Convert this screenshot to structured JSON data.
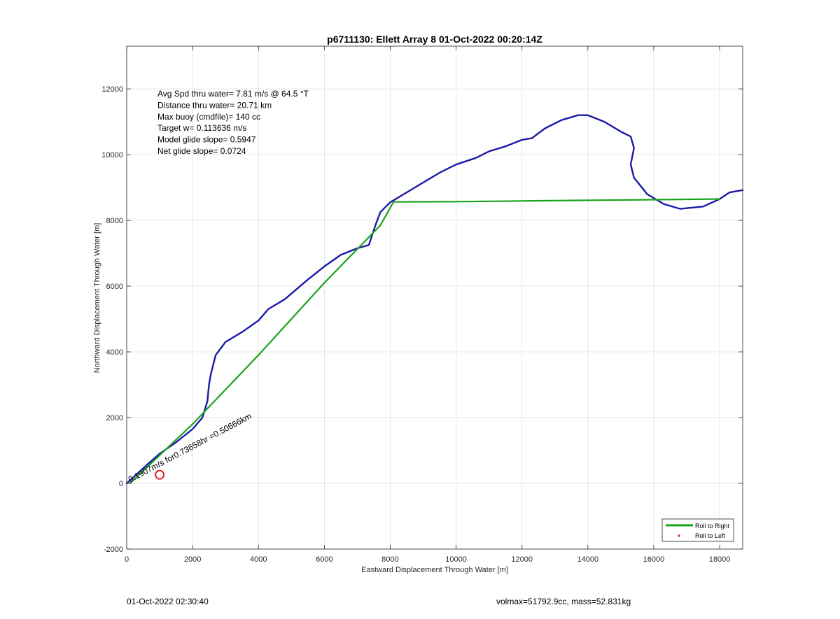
{
  "chart_data": {
    "type": "line",
    "title": "p6711130: Ellett Array 8 01-Oct-2022 00:20:14Z",
    "xlabel": "Eastward Displacement Through Water [m]",
    "ylabel": "Northward Displacement Through Water [m]",
    "xlim": [
      0,
      18700
    ],
    "ylim": [
      -2000,
      13300
    ],
    "grid": true,
    "x_ticks": [
      0,
      2000,
      4000,
      6000,
      8000,
      10000,
      12000,
      14000,
      16000,
      18000
    ],
    "y_ticks": [
      -2000,
      0,
      2000,
      4000,
      6000,
      8000,
      10000,
      12000
    ],
    "x_tick_labels": [
      "0",
      "2000",
      "4000",
      "6000",
      "8000",
      "10000",
      "12000",
      "14000",
      "16000",
      "18000"
    ],
    "y_tick_labels": [
      "-2000",
      "0",
      "2000",
      "4000",
      "6000",
      "8000",
      "10000",
      "12000"
    ],
    "legend": {
      "placement": "bottom-right",
      "entries": [
        {
          "label": "Roll to Right",
          "color": "#1aa31a",
          "marker": "line"
        },
        {
          "label": "Roll to Left",
          "color": "#e02020",
          "marker": "dot"
        }
      ]
    },
    "annotations": [
      "Avg Spd thru water=  7.81 m/s @  64.5 °T",
      "Distance thru water= 20.71 km",
      "Max buoy (cmdfile)= 140 cc",
      "Target w= 0.113636 m/s",
      "Model glide slope= 0.5947",
      "Net glide slope= 0.0724"
    ],
    "current_label": "0.1907m/s for0.73658hr =0.50666km",
    "series": [
      {
        "color": "#1a1aa8",
        "x": [
          0,
          200,
          600,
          1000,
          1500,
          2000,
          2300,
          2450,
          2500,
          2550,
          2700,
          3000,
          3500,
          4000,
          4300,
          4800,
          5500,
          6000,
          6500,
          7000,
          7350,
          7450,
          7550,
          7700,
          8000,
          8500,
          9000,
          9500,
          10000,
          10600,
          11000,
          11500,
          12000,
          12300,
          12700,
          13200,
          13700,
          14000,
          14500,
          15000,
          15300,
          15400,
          15300,
          15400,
          15800,
          16300,
          16800,
          17500,
          18000,
          18300,
          18700
        ],
        "y": [
          0,
          180,
          550,
          900,
          1250,
          1650,
          2000,
          2500,
          3000,
          3300,
          3900,
          4300,
          4600,
          4950,
          5300,
          5600,
          6200,
          6600,
          6950,
          7150,
          7250,
          7550,
          7850,
          8250,
          8550,
          8850,
          9150,
          9450,
          9700,
          9900,
          10100,
          10250,
          10450,
          10500,
          10800,
          11050,
          11200,
          11200,
          11000,
          10700,
          10550,
          10200,
          9700,
          9300,
          8800,
          8500,
          8350,
          8420,
          8650,
          8850,
          8920
        ]
      },
      {
        "color": "#1aa31a",
        "x": [
          100,
          2000,
          4000,
          6000,
          7700,
          8100,
          10000,
          12000,
          14000,
          16000,
          18000
        ],
        "y": [
          0,
          1800,
          3900,
          6100,
          7850,
          8560,
          8570,
          8590,
          8610,
          8630,
          8650
        ]
      }
    ],
    "markers": [
      {
        "x": 1000,
        "y": 260,
        "color": "#e02020",
        "shape": "circle"
      }
    ]
  },
  "footer": {
    "left": "01-Oct-2022 02:30:40",
    "right": "volmax=51792.9cc, mass=52.831kg"
  }
}
